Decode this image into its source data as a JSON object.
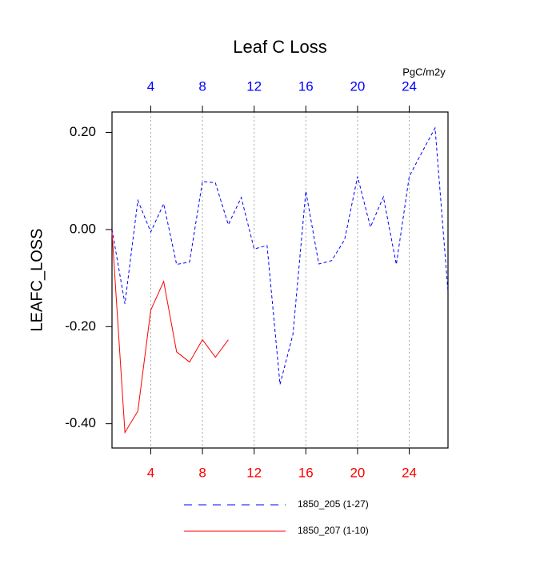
{
  "chart_data": {
    "type": "line",
    "title": "Leaf C Loss",
    "y_label": "LEAFC_LOSS",
    "top_axis_label": "PgC/m2y",
    "x": [
      1,
      2,
      3,
      4,
      5,
      6,
      7,
      8,
      9,
      10,
      11,
      12,
      13,
      14,
      15,
      16,
      17,
      18,
      19,
      20,
      21,
      22,
      23,
      24,
      25,
      26,
      27
    ],
    "series": [
      {
        "name": "1850_205 (1-27)",
        "color": "#0000ff",
        "dash": true,
        "values": [
          0.0,
          -0.153,
          0.06,
          -0.005,
          0.053,
          -0.072,
          -0.067,
          0.099,
          0.096,
          0.01,
          0.066,
          -0.04,
          -0.033,
          -0.319,
          -0.216,
          0.079,
          -0.071,
          -0.064,
          -0.021,
          0.109,
          0.005,
          0.067,
          -0.072,
          0.109,
          0.16,
          0.209,
          -0.128
        ]
      },
      {
        "name": "1850_207 (1-10)",
        "color": "#ff0000",
        "dash": false,
        "values": [
          -0.005,
          -0.418,
          -0.374,
          -0.166,
          -0.107,
          -0.252,
          -0.273,
          -0.227,
          -0.263,
          -0.227,
          null,
          null,
          null,
          null,
          null,
          null,
          null,
          null,
          null,
          null,
          null,
          null,
          null,
          null,
          null,
          null,
          null
        ]
      }
    ],
    "xlim": [
      1,
      27
    ],
    "xticks": [
      4,
      8,
      12,
      16,
      20,
      24
    ],
    "ylim": [
      -0.45,
      0.242
    ],
    "yticks": [
      {
        "value": 0.2,
        "label": "0.20"
      },
      {
        "value": 0,
        "label": "0.00"
      },
      {
        "value": -0.2,
        "label": "-0.20"
      },
      {
        "value": -0.4,
        "label": "-0.40"
      }
    ],
    "top_tick_color": "#0000ff",
    "bottom_tick_color": "#ff0000",
    "grid": true
  }
}
